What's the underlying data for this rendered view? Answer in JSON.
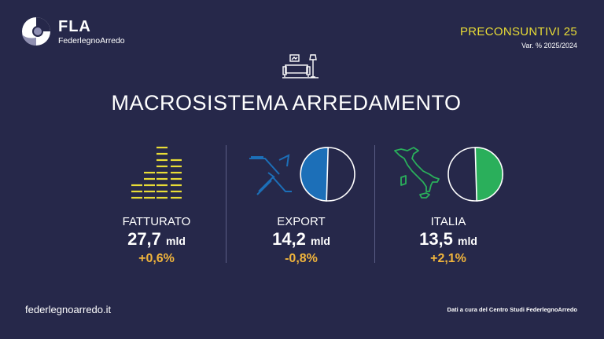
{
  "brand": {
    "name": "FLA",
    "subtitle": "FederlegnoArredo",
    "logo": "fla-logo-icon"
  },
  "header": {
    "preconsuntivi": "PRECONSUNTIVI 25",
    "variation": "Var. % 2025/2024"
  },
  "main": {
    "icon": "furniture-sofa-lamp-icon",
    "title": "MACROSISTEMA ARREDAMENTO"
  },
  "metrics": [
    {
      "icon": "bar-stack-icon",
      "label": "FATTURATO",
      "value": "27,7",
      "unit": "mld",
      "change": "+0,6%"
    },
    {
      "icon": "export-arrows-icon",
      "label": "EXPORT",
      "value": "14,2",
      "unit": "mld",
      "change": "-0,8%",
      "share_pie_fraction": 0.51,
      "pie_color": "#1c6fb8"
    },
    {
      "icon": "italy-map-icon",
      "label": "ITALIA",
      "value": "13,5",
      "unit": "mld",
      "change": "+2,1%",
      "share_pie_fraction": 0.49,
      "pie_color": "#2aaf5b"
    }
  ],
  "footer": {
    "url": "federlegnoarredo.it",
    "note": "Dati a cura del Centro Studi FederlegnoArredo"
  },
  "colors": {
    "background": "#26284a",
    "accent_yellow": "#e8dc36",
    "change_orange": "#f0b43c"
  }
}
